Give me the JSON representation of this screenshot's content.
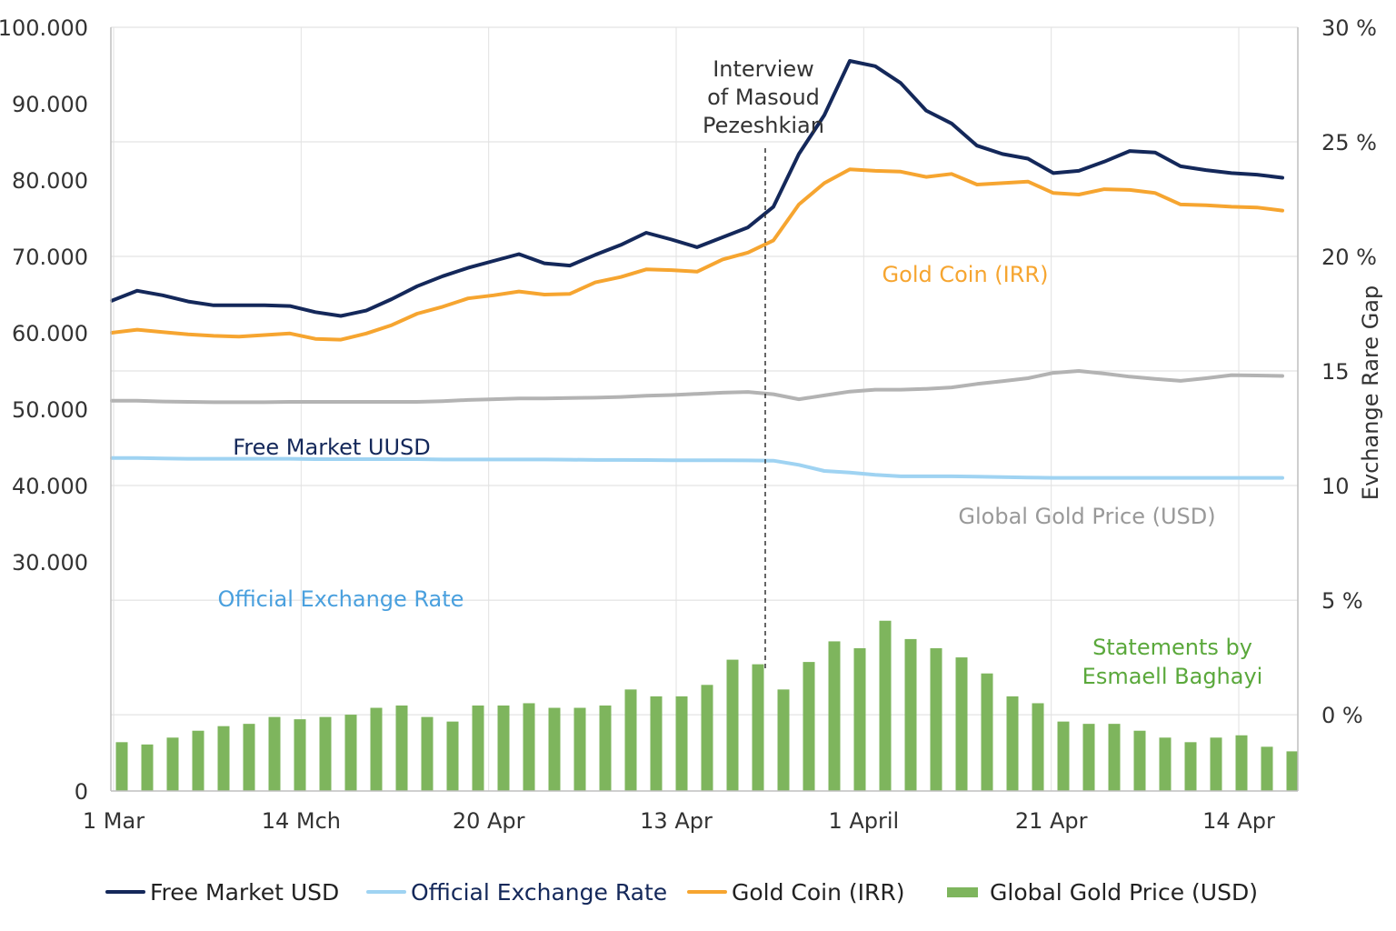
{
  "chart_data": {
    "type": "line",
    "title": "",
    "xlabel": "",
    "ylabel": "",
    "y2label": "Evchange Rare Gap",
    "ylim": [
      0,
      100000
    ],
    "y2lim": [
      -3.33,
      30
    ],
    "grid": true,
    "legend_position": "bottom",
    "x_tick_labels": [
      "1 Mar",
      "14 Mch",
      "20 Apr",
      "13 Apr",
      "1 April",
      "21 Apr",
      "14 Apr"
    ],
    "y_tick_labels": [
      "0",
      "30.000",
      "40.000",
      "50.000",
      "60.000",
      "70.000",
      "80.000",
      "90.000",
      "100.000"
    ],
    "y_tick_values": [
      0,
      30000,
      40000,
      50000,
      60000,
      70000,
      80000,
      90000,
      100000
    ],
    "y2_tick_labels": [
      "0 %",
      "5 %",
      "10",
      "15",
      "20 %",
      "25 %",
      "30 %"
    ],
    "y2_tick_values": [
      0,
      5,
      10,
      15,
      20,
      25,
      30
    ],
    "series": [
      {
        "name": "Free Market USD",
        "kind": "line",
        "axis": "left",
        "color": "#14285a",
        "values": [
          64200,
          65500,
          64900,
          64100,
          63600,
          63600,
          63600,
          63500,
          62700,
          62200,
          62900,
          64400,
          66100,
          67400,
          68500,
          69400,
          70300,
          69100,
          68800,
          70200,
          71500,
          73100,
          72200,
          71200,
          72500,
          73800,
          76500,
          83400,
          88500,
          95600,
          94900,
          92700,
          89100,
          87400,
          84500,
          83400,
          82800,
          80900,
          81200,
          82400,
          83800,
          83600,
          81800,
          81300,
          80900,
          80700,
          80300
        ]
      },
      {
        "name": "Official Exchange Rate",
        "kind": "line",
        "axis": "left",
        "color": "#9fd3f2",
        "values": [
          43600,
          43600,
          43550,
          43500,
          43500,
          43500,
          43500,
          43500,
          43450,
          43450,
          43450,
          43450,
          43450,
          43400,
          43400,
          43400,
          43400,
          43400,
          43380,
          43350,
          43350,
          43330,
          43300,
          43300,
          43300,
          43280,
          43250,
          42700,
          41900,
          41700,
          41400,
          41200,
          41200,
          41200,
          41150,
          41100,
          41050,
          41000,
          41000,
          41000,
          41000,
          41000,
          41000,
          41000,
          41000,
          41000,
          41000
        ]
      },
      {
        "name": "Gold Coin (IRR)",
        "kind": "line",
        "axis": "left",
        "color": "#f6a530",
        "values": [
          60000,
          60400,
          60100,
          59800,
          59600,
          59500,
          59700,
          59900,
          59200,
          59100,
          59900,
          61000,
          62500,
          63400,
          64500,
          64900,
          65400,
          65000,
          65100,
          66600,
          67300,
          68300,
          68200,
          68000,
          69600,
          70500,
          72100,
          76800,
          79600,
          81400,
          81200,
          81100,
          80400,
          80800,
          79400,
          79600,
          79800,
          78300,
          78100,
          78800,
          78700,
          78300,
          76800,
          76700,
          76500,
          76400,
          76000
        ]
      },
      {
        "name": "Global Gold Price (USD)",
        "kind": "line",
        "axis": "left",
        "color": "#b3b3b3",
        "values": [
          51100,
          51100,
          51000,
          50950,
          50900,
          50900,
          50900,
          50950,
          50950,
          50950,
          50950,
          50950,
          50950,
          51050,
          51200,
          51300,
          51400,
          51400,
          51450,
          51500,
          51600,
          51750,
          51850,
          52000,
          52150,
          52250,
          51950,
          51300,
          51800,
          52300,
          52550,
          52550,
          52650,
          52850,
          53300,
          53650,
          54050,
          54750,
          55000,
          54650,
          54250,
          53950,
          53700,
          54050,
          54450,
          54400,
          54350
        ]
      },
      {
        "name": "Global Gold Price (USD)",
        "kind": "bar",
        "axis": "right",
        "color": "#7eb55d",
        "values": [
          -1.2,
          -1.3,
          -1.0,
          -0.7,
          -0.5,
          -0.4,
          -0.1,
          -0.2,
          -0.1,
          0.0,
          0.3,
          0.4,
          -0.1,
          -0.3,
          0.4,
          0.4,
          0.5,
          0.3,
          0.3,
          0.4,
          1.1,
          0.8,
          0.8,
          1.3,
          2.4,
          2.2,
          1.1,
          2.3,
          3.2,
          2.9,
          4.1,
          3.3,
          2.9,
          2.5,
          1.8,
          0.8,
          0.5,
          -0.3,
          -0.4,
          -0.4,
          -0.7,
          -1.0,
          -1.2,
          -1.0,
          -0.9,
          -1.4,
          -1.6
        ]
      }
    ],
    "annotations": [
      {
        "text": "Interview\nof Masoud\nPezeshkian",
        "color": "#333333"
      },
      {
        "text": "Free Market UUSD",
        "color": "#14285a"
      },
      {
        "text": "Gold Coin (IRR)",
        "color": "#f6a530"
      },
      {
        "text": "Global Gold Price (USD)",
        "color": "#999999"
      },
      {
        "text": "Official Exchange Rate",
        "color": "#4aa0de"
      },
      {
        "text": "Statements by\nEsmaell Baghayi",
        "color": "#5aa83b"
      }
    ],
    "legend": [
      {
        "label": "Free Market USD",
        "color": "#14285a",
        "text_color": "#222222",
        "type": "line"
      },
      {
        "label": "Official Exchange Rate",
        "color": "#9fd3f2",
        "text_color": "#14285a",
        "type": "line"
      },
      {
        "label": "Gold Coin (IRR)",
        "color": "#f6a530",
        "text_color": "#222222",
        "type": "line"
      },
      {
        "label": "Global Gold Price (USD)",
        "color": "#7eb55d",
        "text_color": "#222222",
        "type": "bar"
      }
    ]
  }
}
